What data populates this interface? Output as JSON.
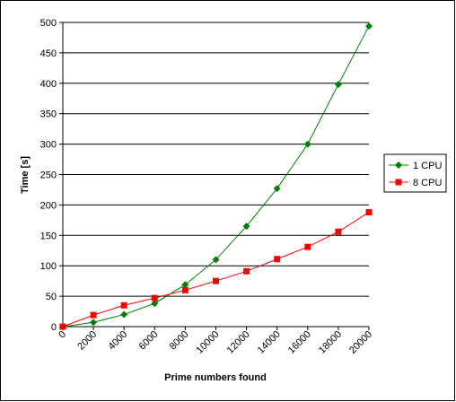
{
  "chart_data": {
    "type": "line",
    "x_label": "Prime numbers found",
    "y_label": "Time [s]",
    "x": [
      0,
      2000,
      4000,
      6000,
      8000,
      10000,
      12000,
      14000,
      16000,
      18000,
      20000
    ],
    "series": [
      {
        "name": "1 CPU",
        "color": "#008000",
        "marker": "diamond",
        "values": [
          0,
          7,
          20,
          38,
          69,
          110,
          165,
          227,
          300,
          398,
          494
        ]
      },
      {
        "name": "8 CPU",
        "color": "#ff0000",
        "marker": "square",
        "values": [
          0,
          19,
          35,
          47,
          60,
          75,
          91,
          111,
          131,
          156,
          188
        ]
      }
    ],
    "xlim": [
      0,
      20000
    ],
    "xticks": [
      0,
      2000,
      4000,
      6000,
      8000,
      10000,
      12000,
      14000,
      16000,
      18000,
      20000
    ],
    "ylim": [
      0,
      500
    ],
    "yticks": [
      0,
      50,
      100,
      150,
      200,
      250,
      300,
      350,
      400,
      450,
      500
    ],
    "grid": true,
    "legend": "right"
  }
}
